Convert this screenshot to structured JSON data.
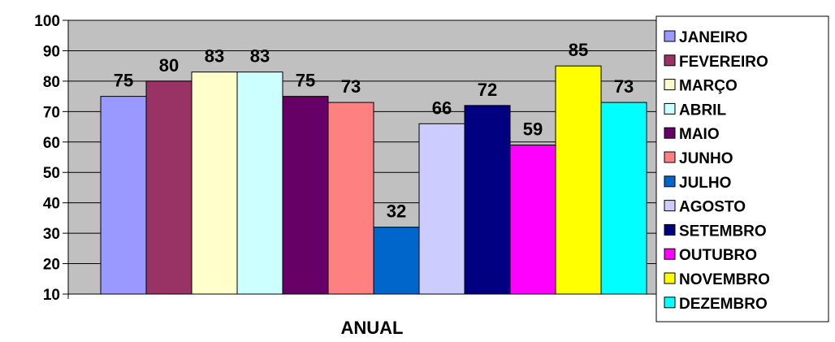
{
  "chart_data": {
    "type": "bar",
    "xlabel": "ANUAL",
    "ylabel": "",
    "ylim": [
      10,
      100
    ],
    "yticks": [
      10,
      20,
      30,
      40,
      50,
      60,
      70,
      80,
      90,
      100
    ],
    "grid": true,
    "legend_position": "right",
    "series": [
      {
        "name": "JANEIRO",
        "value": 75,
        "color": "#9999ff"
      },
      {
        "name": "FEVEREIRO",
        "value": 80,
        "color": "#993366"
      },
      {
        "name": "MARÇO",
        "value": 83,
        "color": "#ffffcc"
      },
      {
        "name": "ABRIL",
        "value": 83,
        "color": "#ccffff"
      },
      {
        "name": "MAIO",
        "value": 75,
        "color": "#660066"
      },
      {
        "name": "JUNHO",
        "value": 73,
        "color": "#ff8080"
      },
      {
        "name": "JULHO",
        "value": 32,
        "color": "#0066cc"
      },
      {
        "name": "AGOSTO",
        "value": 66,
        "color": "#ccccff"
      },
      {
        "name": "SETEMBRO",
        "value": 72,
        "color": "#000080"
      },
      {
        "name": "OUTUBRO",
        "value": 59,
        "color": "#ff00ff"
      },
      {
        "name": "NOVEMBRO",
        "value": 85,
        "color": "#ffff00"
      },
      {
        "name": "DEZEMBRO",
        "value": 73,
        "color": "#00ffff"
      }
    ],
    "plot_background": "#c0c0c0"
  }
}
